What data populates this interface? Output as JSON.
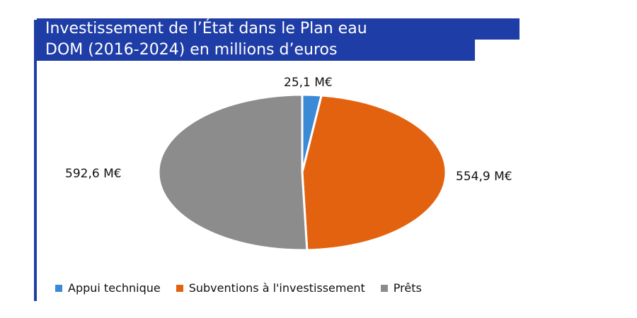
{
  "chart_data": {
    "type": "pie",
    "title_lines": [
      "Investissement de l’État dans le Plan eau",
      "DOM (2016-2024) en millions d’euros"
    ],
    "categories": [
      "Appui technique",
      "Subventions à l'investissement",
      "Prêts"
    ],
    "values": [
      25.1,
      554.9,
      592.6
    ],
    "data_labels": [
      "25,1 M€",
      "554,9 M€",
      "592,6 M€"
    ],
    "colors": [
      "#3a8ad6",
      "#e2620f",
      "#8c8c8c"
    ],
    "legend_position": "bottom"
  }
}
